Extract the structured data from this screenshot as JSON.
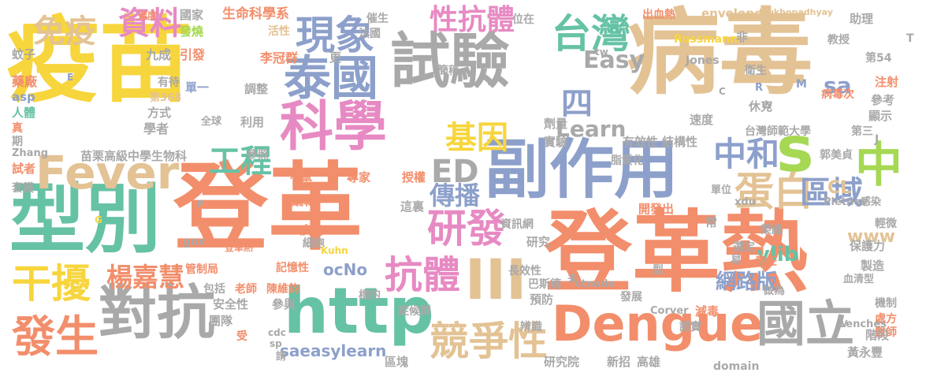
{
  "palette": {
    "orange": "#f28e6b",
    "gray": "#a9a9a9",
    "tan": "#e3c294",
    "yellow": "#f7d53c",
    "teal": "#66c2a5",
    "blue": "#8da0cb",
    "pink": "#e78ac3",
    "green": "#a6d854"
  },
  "words": [
    {
      "text": "疫苗",
      "color": "yellow"
    },
    {
      "text": "病毒",
      "color": "tan"
    },
    {
      "text": "登革",
      "color": "orange"
    },
    {
      "text": "登革熱",
      "color": "orange"
    },
    {
      "text": "試驗",
      "color": "gray"
    },
    {
      "text": "型別",
      "color": "teal"
    },
    {
      "text": "副作用",
      "color": "blue"
    },
    {
      "text": "科學",
      "color": "pink"
    },
    {
      "text": "http",
      "color": "teal"
    },
    {
      "text": "泰國",
      "color": "blue"
    },
    {
      "text": "對抗",
      "color": "gray"
    },
    {
      "text": "Dengue",
      "color": "orange"
    },
    {
      "text": "Fever",
      "color": "tan"
    },
    {
      "text": "現象",
      "color": "blue"
    },
    {
      "text": "台灣",
      "color": "teal"
    },
    {
      "text": "中",
      "color": "green"
    },
    {
      "text": "s",
      "color": "green"
    },
    {
      "text": "國立",
      "color": "gray"
    },
    {
      "text": "競爭性",
      "color": "tan"
    },
    {
      "text": "發生",
      "color": "orange"
    },
    {
      "text": "抗體",
      "color": "pink"
    },
    {
      "text": "研發",
      "color": "pink"
    },
    {
      "text": "干擾",
      "color": "yellow"
    },
    {
      "text": "資料",
      "color": "pink"
    },
    {
      "text": "免疫",
      "color": "tan"
    },
    {
      "text": "性抗體",
      "color": "pink"
    },
    {
      "text": "基因",
      "color": "yellow"
    },
    {
      "text": "工程",
      "color": "teal"
    },
    {
      "text": "ED",
      "color": "gray"
    },
    {
      "text": "四",
      "color": "blue"
    },
    {
      "text": "中和",
      "color": "blue"
    },
    {
      "text": "蛋白",
      "color": "tan"
    },
    {
      "text": "區域",
      "color": "blue"
    },
    {
      "text": "傳播",
      "color": "blue"
    },
    {
      "text": "楊嘉慧",
      "color": "orange"
    },
    {
      "text": "Easy",
      "color": "gray"
    },
    {
      "text": "Learn",
      "color": "gray"
    },
    {
      "text": "sa",
      "color": "blue"
    },
    {
      "text": "ocNo",
      "color": "blue"
    },
    {
      "text": "saeasylearn",
      "color": "blue"
    },
    {
      "text": "網路版",
      "color": "blue"
    },
    {
      "text": "ylib",
      "color": "teal"
    },
    {
      "text": "CL",
      "color": "tan"
    },
    {
      "text": "www",
      "color": "tan"
    },
    {
      "text": "III",
      "color": "tan"
    },
    {
      "text": "生命科學系",
      "color": "orange"
    },
    {
      "text": "國家",
      "color": "gray"
    },
    {
      "text": "遲度",
      "color": "orange"
    },
    {
      "text": "發燒",
      "color": "green"
    },
    {
      "text": "活性",
      "color": "tan"
    },
    {
      "text": "催生",
      "color": "gray"
    },
    {
      "text": "法國",
      "color": "gray"
    },
    {
      "text": "位在",
      "color": "gray"
    },
    {
      "text": "出血熱",
      "color": "orange"
    },
    {
      "text": "envelope",
      "color": "tan"
    },
    {
      "text": "Mukhopadhyay",
      "color": "tan"
    },
    {
      "text": "助理",
      "color": "gray"
    },
    {
      "text": "Rossmann",
      "color": "yellow"
    },
    {
      "text": "教授",
      "color": "gray"
    },
    {
      "text": "第54",
      "color": "gray"
    },
    {
      "text": "九成",
      "color": "gray"
    },
    {
      "text": "引發",
      "color": "orange"
    },
    {
      "text": "李冠群",
      "color": "orange"
    },
    {
      "text": "更",
      "color": "gray"
    },
    {
      "text": "簡稱",
      "color": "gray"
    },
    {
      "text": "Jones",
      "color": "gray"
    },
    {
      "text": "衛生",
      "color": "gray"
    },
    {
      "text": "病毒次",
      "color": "orange"
    },
    {
      "text": "注射",
      "color": "orange"
    },
    {
      "text": "參考",
      "color": "gray"
    },
    {
      "text": "蚊子",
      "color": "gray"
    },
    {
      "text": "藥廠",
      "color": "orange"
    },
    {
      "text": "asp",
      "color": "blue"
    },
    {
      "text": "有待",
      "color": "gray"
    },
    {
      "text": "第368",
      "color": "tan"
    },
    {
      "text": "單一",
      "color": "blue"
    },
    {
      "text": "調整",
      "color": "gray"
    },
    {
      "text": "方式",
      "color": "gray"
    },
    {
      "text": "學者",
      "color": "gray"
    },
    {
      "text": "全球",
      "color": "gray"
    },
    {
      "text": "利用",
      "color": "gray"
    },
    {
      "text": "人體",
      "color": "teal"
    },
    {
      "text": "真",
      "color": "orange"
    },
    {
      "text": "期",
      "color": "gray"
    },
    {
      "text": "Zhang",
      "color": "gray"
    },
    {
      "text": "苗栗高級中學生物科",
      "color": "gray"
    },
    {
      "text": "參照",
      "color": "gray"
    },
    {
      "text": "試者",
      "color": "orange"
    },
    {
      "text": "套膜",
      "color": "gray"
    },
    {
      "text": "小鼠",
      "color": "orange"
    },
    {
      "text": "專家",
      "color": "orange"
    },
    {
      "text": "授權",
      "color": "orange"
    },
    {
      "text": "劑量",
      "color": "gray"
    },
    {
      "text": "實驗",
      "color": "gray"
    },
    {
      "text": "有效性",
      "color": "gray"
    },
    {
      "text": "結構性",
      "color": "gray"
    },
    {
      "text": "速度",
      "color": "gray"
    },
    {
      "text": "休克",
      "color": "gray"
    },
    {
      "text": "顯示",
      "color": "gray"
    },
    {
      "text": "台灣師範大學",
      "color": "gray"
    },
    {
      "text": "第三",
      "color": "gray"
    },
    {
      "text": "郭美貞",
      "color": "gray"
    },
    {
      "text": "脂質化",
      "color": "gray"
    },
    {
      "text": "單位",
      "color": "gray"
    },
    {
      "text": "xdu",
      "color": "gray"
    },
    {
      "text": "Pletnev",
      "color": "gray"
    },
    {
      "text": "感染",
      "color": "gray"
    },
    {
      "text": "輕微",
      "color": "gray"
    },
    {
      "text": "編輯",
      "color": "orange"
    },
    {
      "text": "這裏",
      "color": "gray"
    },
    {
      "text": "資訊網",
      "color": "gray"
    },
    {
      "text": "開發出",
      "color": "orange"
    },
    {
      "text": "常",
      "color": "gray"
    },
    {
      "text": "榮總",
      "color": "gray"
    },
    {
      "text": "保護力",
      "color": "gray"
    },
    {
      "text": "製造",
      "color": "gray"
    },
    {
      "text": "gov",
      "color": "gray"
    },
    {
      "text": "疾病",
      "color": "orange"
    },
    {
      "text": "細胞",
      "color": "gray"
    },
    {
      "text": "研究",
      "color": "gray"
    },
    {
      "text": "型",
      "color": "gray"
    },
    {
      "text": "易",
      "color": "gray"
    },
    {
      "text": "責任",
      "color": "orange"
    },
    {
      "text": "選定",
      "color": "gray"
    },
    {
      "text": "血清型",
      "color": "gray"
    },
    {
      "text": "管制局",
      "color": "orange"
    },
    {
      "text": "記憶性",
      "color": "orange"
    },
    {
      "text": "Kuhn",
      "color": "yellow"
    },
    {
      "text": "長效性",
      "color": "gray"
    },
    {
      "text": "巴斯德",
      "color": "gray"
    },
    {
      "text": "ctnode",
      "color": "gray"
    },
    {
      "text": "做為",
      "color": "gray"
    },
    {
      "text": "機制",
      "color": "gray"
    },
    {
      "text": "處方",
      "color": "orange"
    },
    {
      "text": "醫師",
      "color": "orange"
    },
    {
      "text": "包括",
      "color": "gray"
    },
    {
      "text": "老師",
      "color": "orange"
    },
    {
      "text": "陳維鈞",
      "color": "orange"
    },
    {
      "text": "標的",
      "color": "gray"
    },
    {
      "text": "預防",
      "color": "gray"
    },
    {
      "text": "發展",
      "color": "gray"
    },
    {
      "text": "Corver",
      "color": "gray"
    },
    {
      "text": "減毒",
      "color": "orange"
    },
    {
      "text": "證實",
      "color": "gray"
    },
    {
      "text": "Lenches",
      "color": "gray"
    },
    {
      "text": "階段",
      "color": "gray"
    },
    {
      "text": "安全性",
      "color": "gray"
    },
    {
      "text": "參與",
      "color": "gray"
    },
    {
      "text": "症候群",
      "color": "gray"
    },
    {
      "text": "辨識",
      "color": "gray"
    },
    {
      "text": "團隊",
      "color": "gray"
    },
    {
      "text": "受",
      "color": "orange"
    },
    {
      "text": "cdc",
      "color": "gray"
    },
    {
      "text": "sp",
      "color": "gray"
    },
    {
      "text": "請",
      "color": "gray"
    },
    {
      "text": "區塊",
      "color": "gray"
    },
    {
      "text": "研究院",
      "color": "gray"
    },
    {
      "text": "新招",
      "color": "gray"
    },
    {
      "text": "高雄",
      "color": "gray"
    },
    {
      "text": "domain",
      "color": "gray"
    },
    {
      "text": "黃永豐",
      "color": "gray"
    },
    {
      "text": "登革熱",
      "color": "orange"
    },
    {
      "text": "未",
      "color": "gray"
    },
    {
      "text": "非",
      "color": "gray"
    },
    {
      "text": "tw",
      "color": "gray"
    },
    {
      "text": "M",
      "color": "blue"
    },
    {
      "text": "R",
      "color": "blue"
    },
    {
      "text": "C",
      "color": "gray"
    },
    {
      "text": "W",
      "color": "gray"
    },
    {
      "text": "E",
      "color": "blue"
    },
    {
      "text": "J",
      "color": "gray"
    },
    {
      "text": "P",
      "color": "gray"
    },
    {
      "text": "G",
      "color": "yellow"
    },
    {
      "text": "T",
      "color": "gray"
    },
    {
      "text": "V",
      "color": "gray"
    }
  ]
}
